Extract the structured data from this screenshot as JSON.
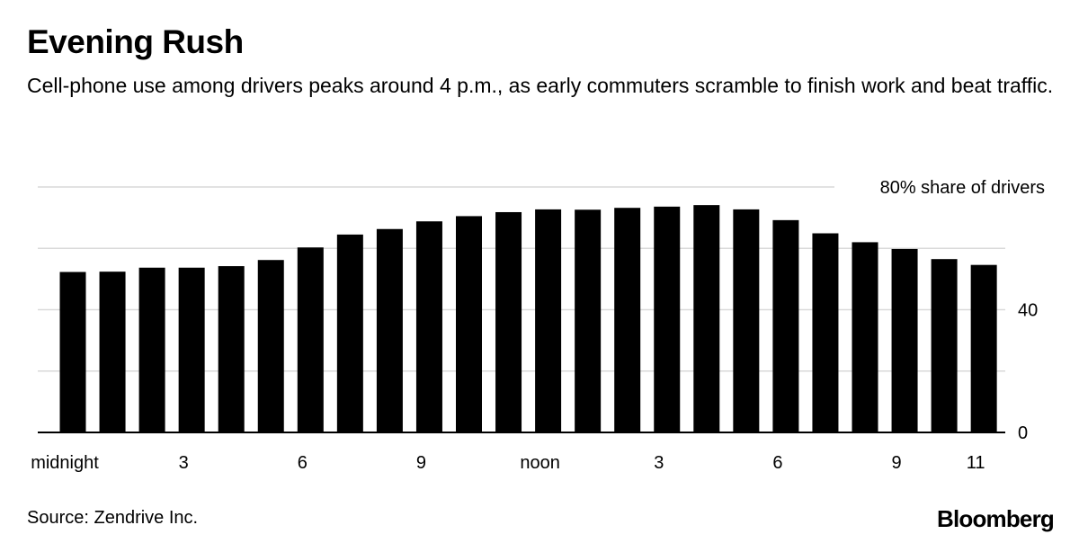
{
  "chart_data": {
    "type": "bar",
    "title": "Evening Rush",
    "subtitle": "Cell-phone use among drivers peaks around 4 p.m., as early commuters scramble to finish work and beat traffic.",
    "ylabel": "80% share of drivers",
    "ylim": [
      0,
      80
    ],
    "yticks": [
      0,
      20,
      40,
      60,
      80
    ],
    "ytick_labels": [
      {
        "value": 0,
        "label": "0"
      },
      {
        "value": 40,
        "label": "40"
      },
      {
        "value": 80,
        "label": "80% share of drivers"
      }
    ],
    "categories": [
      "0",
      "1",
      "2",
      "3",
      "4",
      "5",
      "6",
      "7",
      "8",
      "9",
      "10",
      "11",
      "12",
      "13",
      "14",
      "15",
      "16",
      "17",
      "18",
      "19",
      "20",
      "21",
      "22",
      "23"
    ],
    "values": [
      52.3,
      52.4,
      53.7,
      53.7,
      54.2,
      56.2,
      60.3,
      64.5,
      66.3,
      68.8,
      70.5,
      71.8,
      72.7,
      72.6,
      73.2,
      73.6,
      74.1,
      72.7,
      69.2,
      64.9,
      62.0,
      59.8,
      56.5,
      54.6
    ],
    "xtick_labels": [
      {
        "index": 0,
        "label": "midnight"
      },
      {
        "index": 3,
        "label": "3"
      },
      {
        "index": 6,
        "label": "6"
      },
      {
        "index": 9,
        "label": "9"
      },
      {
        "index": 12,
        "label": "noon"
      },
      {
        "index": 15,
        "label": "3"
      },
      {
        "index": 18,
        "label": "6"
      },
      {
        "index": 21,
        "label": "9"
      },
      {
        "index": 23,
        "label": "11"
      }
    ],
    "colors": {
      "bar": "#000000",
      "grid": "#d9d9d9",
      "axis": "#000000"
    }
  },
  "footer": {
    "source": "Source: Zendrive Inc.",
    "brand": "Bloomberg"
  }
}
